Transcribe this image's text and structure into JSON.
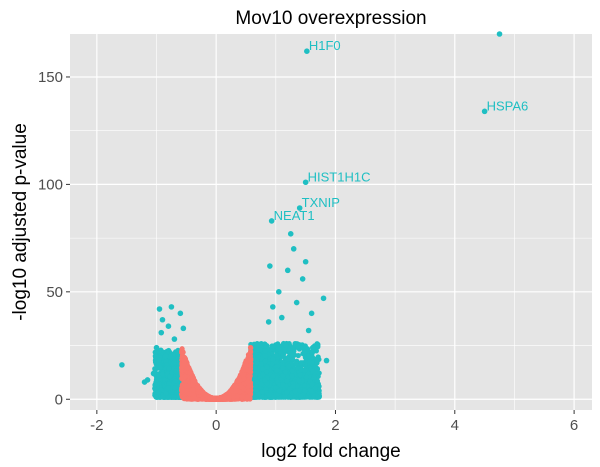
{
  "chart_data": {
    "type": "scatter",
    "title": "Mov10 overexpression",
    "xlabel": "log2 fold change",
    "ylabel": "-log10 adjusted p-value",
    "xlim": [
      -2.45,
      6.3
    ],
    "ylim": [
      -5,
      170
    ],
    "x_ticks": [
      -2,
      0,
      2,
      4,
      6
    ],
    "y_ticks": [
      0,
      50,
      100,
      150
    ],
    "grid": true,
    "background": "#e5e5e5",
    "grid_color": "#ffffff",
    "colors": {
      "significant": "#1fbfc3",
      "not_significant": "#f8766d"
    },
    "labeled_genes": [
      {
        "gene": "H1F0",
        "x": 1.52,
        "y": 162
      },
      {
        "gene": "HSPA6",
        "x": 4.5,
        "y": 134
      },
      {
        "gene": "HIST1H1C",
        "x": 1.5,
        "y": 101
      },
      {
        "gene": "TXNIP",
        "x": 1.4,
        "y": 89
      },
      {
        "gene": "NEAT1",
        "x": 0.93,
        "y": 83
      }
    ],
    "highlight_points": [
      {
        "x": 4.75,
        "y": 170
      },
      {
        "x": 1.25,
        "y": 77
      },
      {
        "x": 1.3,
        "y": 70
      },
      {
        "x": 1.5,
        "y": 64
      },
      {
        "x": 0.9,
        "y": 62
      },
      {
        "x": 1.2,
        "y": 60
      },
      {
        "x": 1.45,
        "y": 56
      },
      {
        "x": 1.8,
        "y": 47
      },
      {
        "x": 1.05,
        "y": 50
      },
      {
        "x": 1.35,
        "y": 45
      },
      {
        "x": 0.95,
        "y": 43
      },
      {
        "x": 1.6,
        "y": 40
      },
      {
        "x": 1.1,
        "y": 38
      },
      {
        "x": 1.55,
        "y": 32
      },
      {
        "x": 1.48,
        "y": 22
      },
      {
        "x": 1.85,
        "y": 18
      },
      {
        "x": 1.62,
        "y": 24
      },
      {
        "x": 0.88,
        "y": 36
      },
      {
        "x": -0.95,
        "y": 42
      },
      {
        "x": -0.75,
        "y": 43
      },
      {
        "x": -0.9,
        "y": 37
      },
      {
        "x": -0.6,
        "y": 40
      },
      {
        "x": -0.8,
        "y": 34
      },
      {
        "x": -0.92,
        "y": 31
      },
      {
        "x": -0.7,
        "y": 28
      },
      {
        "x": -1.0,
        "y": 24
      },
      {
        "x": -0.85,
        "y": 20
      },
      {
        "x": -0.55,
        "y": 33
      },
      {
        "x": -1.58,
        "y": 16
      },
      {
        "x": -1.15,
        "y": 9
      },
      {
        "x": -1.05,
        "y": 12
      },
      {
        "x": -1.2,
        "y": 8
      }
    ]
  }
}
